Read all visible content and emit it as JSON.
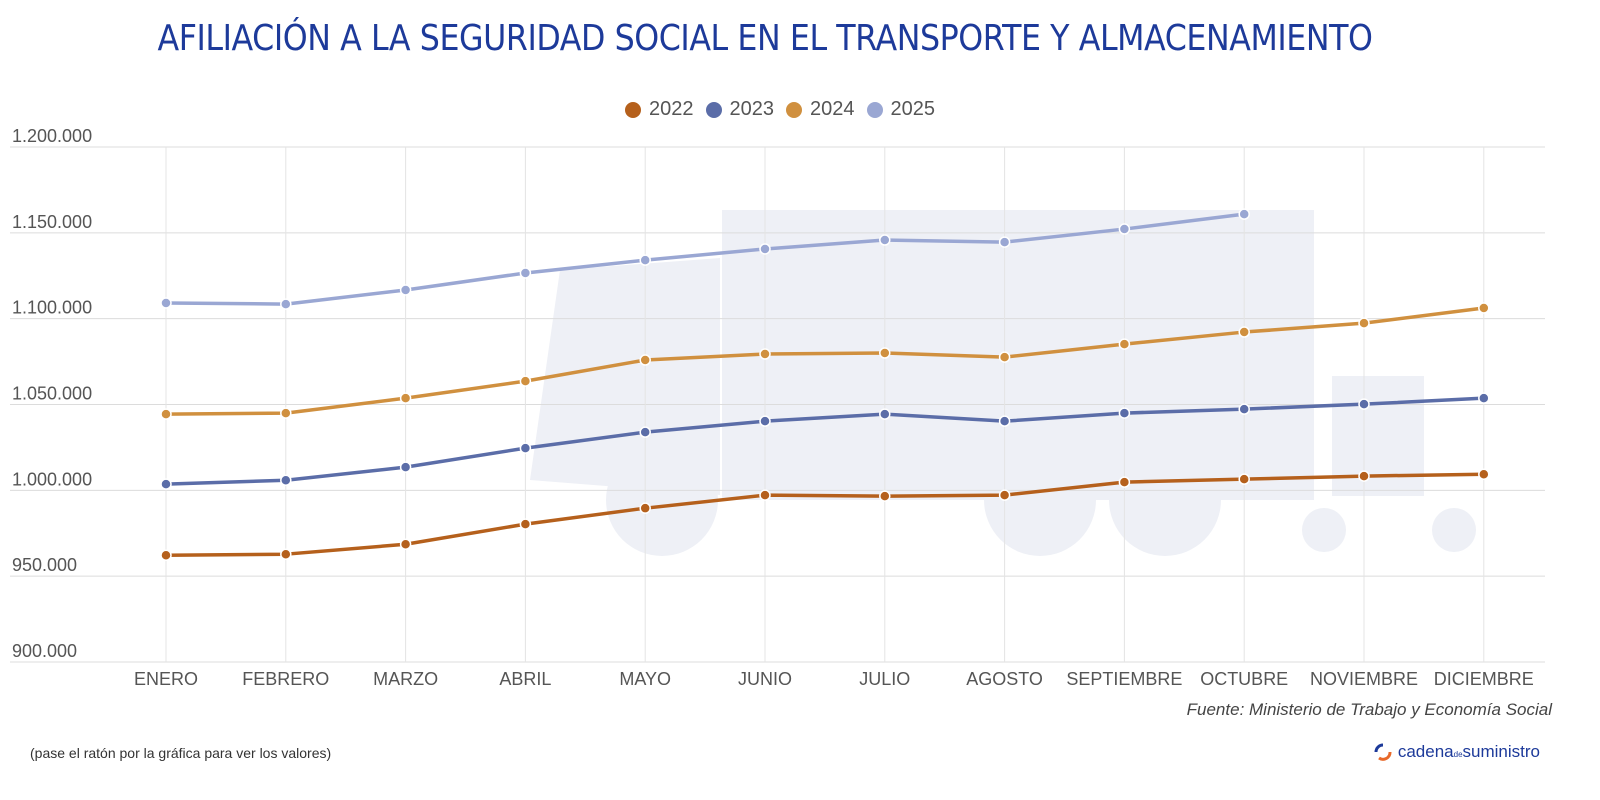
{
  "chart_data": {
    "type": "line",
    "title": "AFILIACIÓN A LA SEGURIDAD SOCIAL EN EL TRANSPORTE Y ALMACENAMIENTO",
    "xlabel": "",
    "ylabel": "",
    "ylim": [
      900000,
      1200000
    ],
    "yticks": [
      "1.200.000",
      "1.150.000",
      "1.100.000",
      "1.050.000",
      "1.000.000",
      "950.000",
      "900.000"
    ],
    "ytick_values": [
      1200000,
      1150000,
      1100000,
      1050000,
      1000000,
      950000,
      900000
    ],
    "grid": true,
    "legend_position": "top",
    "categories": [
      "ENERO",
      "FEBRERO",
      "MARZO",
      "ABRIL",
      "MAYO",
      "JUNIO",
      "JULIO",
      "AGOSTO",
      "SEPTIEMBRE",
      "OCTUBRE",
      "NOVIEMBRE",
      "DICIEMBRE"
    ],
    "series": [
      {
        "name": "2022",
        "color": "#b5601c",
        "values": [
          962200,
          962800,
          968600,
          980300,
          989600,
          997200,
          996600,
          997200,
          1004800,
          1006500,
          1008300,
          1009400
        ]
      },
      {
        "name": "2023",
        "color": "#5b6da8",
        "values": [
          1003600,
          1005900,
          1013500,
          1024600,
          1033900,
          1040300,
          1044400,
          1040300,
          1045000,
          1047300,
          1050200,
          1053700
        ]
      },
      {
        "name": "2024",
        "color": "#d0903f",
        "values": [
          1044400,
          1045000,
          1053700,
          1063600,
          1075900,
          1079400,
          1080000,
          1077600,
          1085200,
          1092200,
          1097400,
          1106200
        ]
      },
      {
        "name": "2025",
        "color": "#9aa7d3",
        "values": [
          1109100,
          1108500,
          1116700,
          1126600,
          1134100,
          1140600,
          1145800,
          1144600,
          1152200,
          1160900,
          null,
          null
        ]
      }
    ]
  },
  "source": "Fuente: Ministerio de Trabajo y Economía Social",
  "hint": "(pase el ratón por la gráfica para ver los valores)",
  "logo": {
    "part1": "cadena",
    "part2": "de",
    "part3": "suministro"
  }
}
